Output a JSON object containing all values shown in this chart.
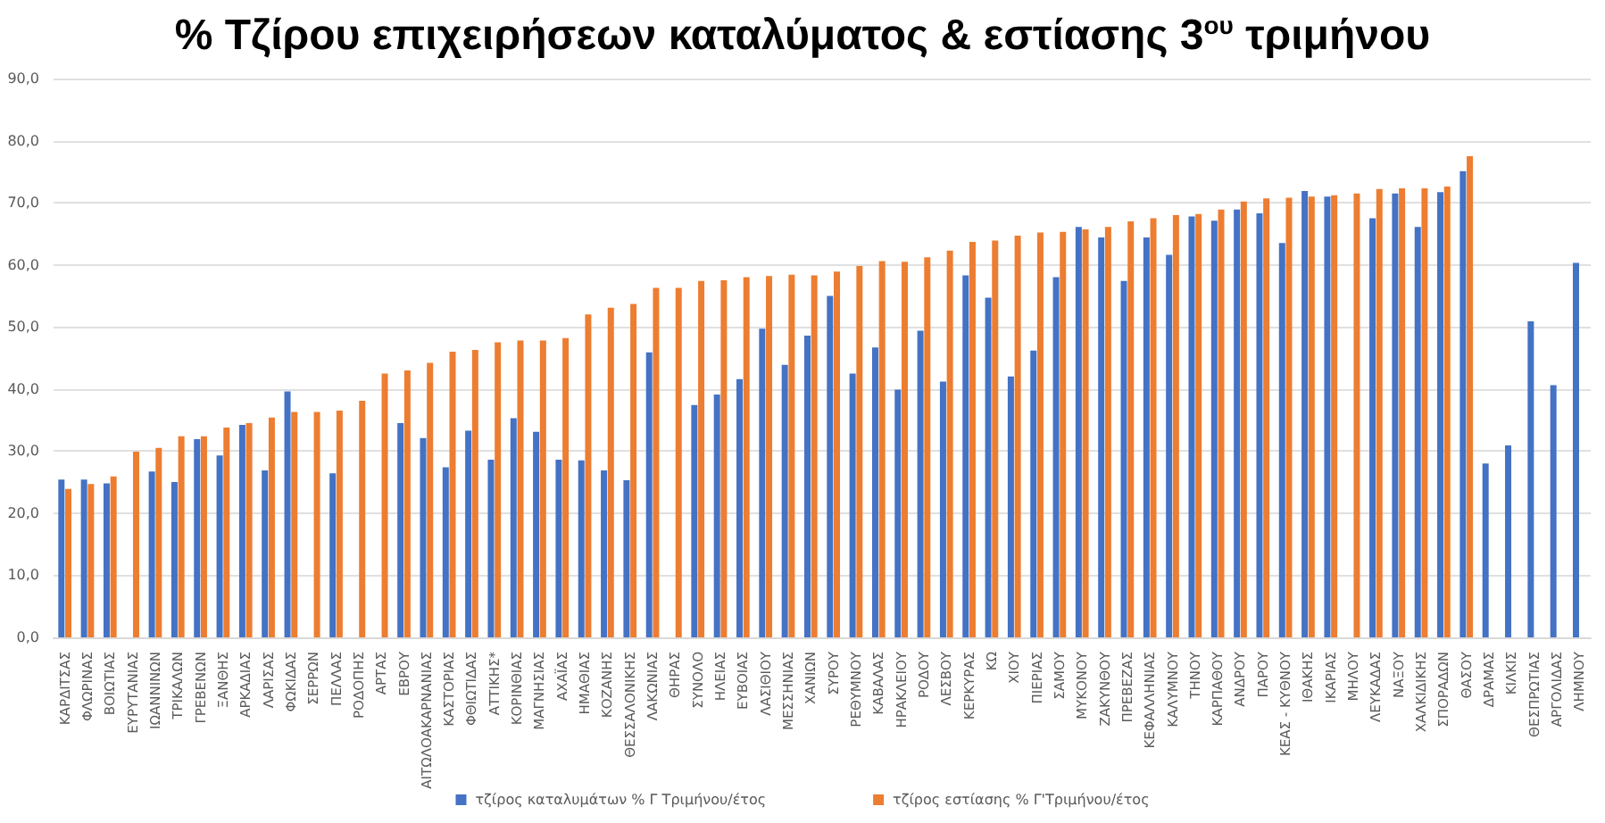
{
  "chart_data": {
    "type": "bar",
    "title": "% Τζίρου επιχειρήσεων καταλύματος & εστίασης 3$^{ου}$ τριμήνου",
    "categories": [
      "ΚΑΡΔΙΤΣΑΣ",
      "ΦΛΩΡΙΝΑΣ",
      "ΒΟΙΩΤΙΑΣ",
      "ΕΥΡΥΤΑΝΙΑΣ",
      "ΙΩΑΝΝΙΝΩΝ",
      "ΤΡΙΚΑΛΩΝ",
      "ΓΡΕΒΕΝΩΝ",
      "ΞΑΝΘΗΣ",
      "ΑΡΚΑΔΙΑΣ",
      "ΛΑΡΙΣΑΣ",
      "ΦΩΚΙΔΑΣ",
      "ΣΕΡΡΩΝ",
      "ΠΕΛΛΑΣ",
      "ΡΟΔΟΠΗΣ",
      "ΑΡΤΑΣ",
      "ΕΒΡΟΥ",
      "ΑΙΤΩΛΟΑΚΑΡΝΑΝΙΑΣ",
      "ΚΑΣΤΟΡΙΑΣ",
      "ΦΘΙΩΤΙΔΑΣ",
      "ΑΤΤΙΚΗΣ*",
      "ΚΟΡΙΝΘΙΑΣ",
      "ΜΑΓΝΗΣΙΑΣ",
      "ΑΧΑΪΑΣ",
      "ΗΜΑΘΙΑΣ",
      "ΚΟΖΑΝΗΣ",
      "ΘΕΣΣΑΛΟΝΙΚΗΣ",
      "ΛΑΚΩΝΙΑΣ",
      "ΘΗΡΑΣ",
      "ΣΥΝΟΛΟ",
      "ΗΛΕΙΑΣ",
      "ΕΥΒΟΙΑΣ",
      "ΛΑΣΙΘΙΟΥ",
      "ΜΕΣΣΗΝΙΑΣ",
      "ΧΑΝΙΩΝ",
      "ΣΥΡΟΥ",
      "ΡΕΘΥΜΝΟΥ",
      "ΚΑΒΑΛΑΣ",
      "ΗΡΑΚΛΕΙΟΥ",
      "ΡΟΔΟΥ",
      "ΛΕΣΒΟΥ",
      "ΚΕΡΚΥΡΑΣ",
      "ΚΩ",
      "ΧΙΟΥ",
      "ΠΙΕΡΙΑΣ",
      "ΣΑΜΟΥ",
      "ΜΥΚΟΝΟΥ",
      "ΖΑΚΥΝΘΟΥ",
      "ΠΡΕΒΕΖΑΣ",
      "ΚΕΦΑΛΛΗΝΙΑΣ",
      "ΚΑΛΥΜΝΟΥ",
      "ΤΗΝΟΥ",
      "ΚΑΡΠΑΘΟΥ",
      "ΑΝΔΡΟΥ",
      "ΠΑΡΟΥ",
      "ΚΕΑΣ - ΚΥΘΝΟΥ",
      "ΙΘΑΚΗΣ",
      "ΙΚΑΡΙΑΣ",
      "ΜΗΛΟΥ",
      "ΛΕΥΚΑΔΑΣ",
      "ΝΑΞΟΥ",
      "ΧΑΛΚΙΔΙΚΗΣ",
      "ΣΠΟΡΑΔΩΝ",
      "ΘΑΣΟΥ",
      "ΔΡΑΜΑΣ",
      "ΚΙΛΚΙΣ",
      "ΘΕΣΠΡΩΤΙΑΣ",
      "ΑΡΓΟΛΙΔΑΣ",
      "ΛΗΜΝΟΥ"
    ],
    "series": [
      {
        "name": "τζίρος καταλυμάτων % Γ Τριμήνου/έτος",
        "color": "#4472c4",
        "values": [
          25.4,
          25.4,
          24.8,
          null,
          26.7,
          25.0,
          31.9,
          29.3,
          34.2,
          26.9,
          39.6,
          null,
          26.4,
          null,
          null,
          34.5,
          32.1,
          27.4,
          33.3,
          28.6,
          35.3,
          33.1,
          28.6,
          28.5,
          26.9,
          25.3,
          45.9,
          null,
          37.4,
          39.1,
          41.6,
          49.7,
          43.9,
          48.6,
          55.0,
          42.5,
          46.7,
          39.9,
          49.4,
          41.2,
          58.3,
          54.7,
          42.0,
          46.2,
          58.0,
          66.1,
          64.4,
          57.4,
          64.4,
          61.6,
          67.8,
          67.1,
          68.9,
          68.3,
          63.5,
          71.9,
          71.0,
          null,
          67.5,
          71.5,
          66.1,
          71.7,
          75.1,
          28.0,
          30.9,
          50.9,
          40.6,
          60.3
        ]
      },
      {
        "name": "τζίρος εστίασης % Γ'Τριμήνου/έτος",
        "color": "#ed7d31",
        "values": [
          23.9,
          24.7,
          25.9,
          29.9,
          30.5,
          32.4,
          32.4,
          33.8,
          34.5,
          35.4,
          36.3,
          36.3,
          36.5,
          38.1,
          42.5,
          43.0,
          44.2,
          46.0,
          46.3,
          47.5,
          47.8,
          47.8,
          48.2,
          52.0,
          53.1,
          53.7,
          56.3,
          56.3,
          57.4,
          57.5,
          58.0,
          58.2,
          58.4,
          58.3,
          58.9,
          59.8,
          60.6,
          60.5,
          61.2,
          62.3,
          63.7,
          63.9,
          64.7,
          65.2,
          65.3,
          65.7,
          66.1,
          67.0,
          67.5,
          68.0,
          68.2,
          68.9,
          70.2,
          70.7,
          70.8,
          71.0,
          71.2,
          71.5,
          72.2,
          72.3,
          72.3,
          72.6,
          77.5,
          null,
          null,
          null,
          null,
          null
        ]
      }
    ],
    "ylim": [
      0,
      90
    ],
    "yticks": [
      {
        "value": 0,
        "label": "0,0"
      },
      {
        "value": 10,
        "label": "10,0"
      },
      {
        "value": 20,
        "label": "20,0"
      },
      {
        "value": 30,
        "label": "30,0"
      },
      {
        "value": 40,
        "label": "40,0"
      },
      {
        "value": 50,
        "label": "50,0"
      },
      {
        "value": 60,
        "label": "60,0"
      },
      {
        "value": 70,
        "label": "70,0"
      },
      {
        "value": 80,
        "label": "80,0"
      },
      {
        "value": 90,
        "label": "90,0"
      }
    ],
    "grid": "y",
    "legend": "bottom"
  }
}
